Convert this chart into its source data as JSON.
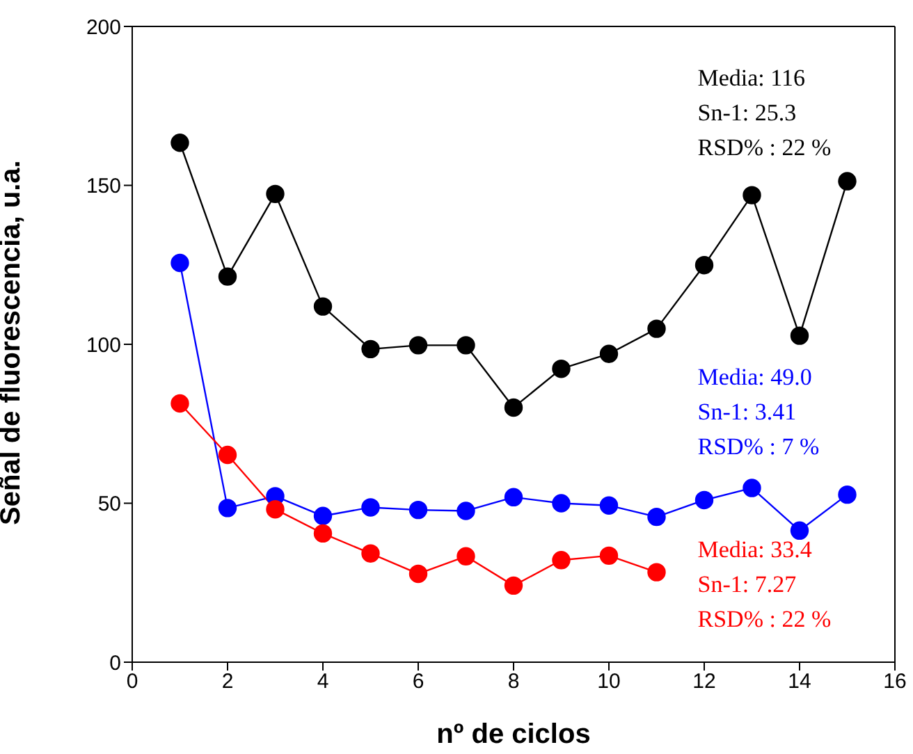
{
  "chart_data": {
    "type": "line",
    "xlabel": "nº de ciclos",
    "ylabel": "Señal de fluorescencia, u.a.",
    "xlim": [
      0,
      16
    ],
    "xticks": [
      0,
      2,
      4,
      6,
      8,
      10,
      12,
      14,
      16
    ],
    "ylim": [
      0,
      200
    ],
    "yticks": [
      0,
      50,
      100,
      150,
      200
    ],
    "marker": "circle",
    "x": [
      1,
      2,
      3,
      4,
      5,
      6,
      7,
      8,
      9,
      10,
      11,
      12,
      13,
      14,
      15
    ],
    "series": [
      {
        "color": "#000000",
        "values": [
          163.4,
          121.3,
          147.3,
          111.9,
          98.5,
          99.7,
          99.7,
          80.1,
          92.3,
          97,
          104.9,
          124.9,
          146.9,
          102.7,
          151.3
        ]
      },
      {
        "color": "#0000ff",
        "values": [
          125.6,
          48.5,
          52.2,
          46,
          48.7,
          47.9,
          47.6,
          51.9,
          50,
          49.3,
          45.7,
          51,
          54.8,
          41.4,
          52.7
        ]
      },
      {
        "color": "#ff0000",
        "values": [
          81.4,
          65.2,
          48.1,
          40.5,
          34.2,
          27.8,
          33.3,
          24.1,
          32.1,
          33.5,
          28.3,
          null,
          null,
          null,
          null
        ]
      }
    ],
    "annotations": [
      "Media: 116\nSn-1: 25.3\nRSD% : 22 %",
      "Media: 49.0\nSn-1: 3.41\nRSD% : 7 %",
      "Media: 33.4\nSn-1: 7.27\nRSD% : 22 %"
    ]
  }
}
